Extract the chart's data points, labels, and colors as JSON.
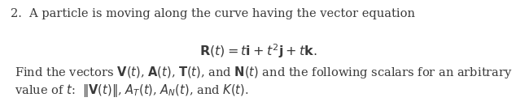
{
  "background_color": "#ffffff",
  "text_color": "#3a3a3a",
  "line1": "2.  A particle is moving along the curve having the vector equation",
  "equation": "$\\mathbf{R}(t) = t\\mathbf{i} + t^2\\mathbf{j} + t\\mathbf{k}.$",
  "line3": "Find the vectors $\\mathbf{V}(t)$, $\\mathbf{A}(t)$, $\\mathbf{T}(t)$, and $\\mathbf{N}(t)$ and the following scalars for an arbitrary",
  "line4": "value of $t$:  $\\|\\mathbf{V}(t)\\|$, $A_T(t)$, $A_N(t)$, and $K(t)$.",
  "fs_main": 10.5,
  "fs_eq": 11.5,
  "fig_width": 6.34,
  "fig_height": 1.31,
  "dpi": 100
}
